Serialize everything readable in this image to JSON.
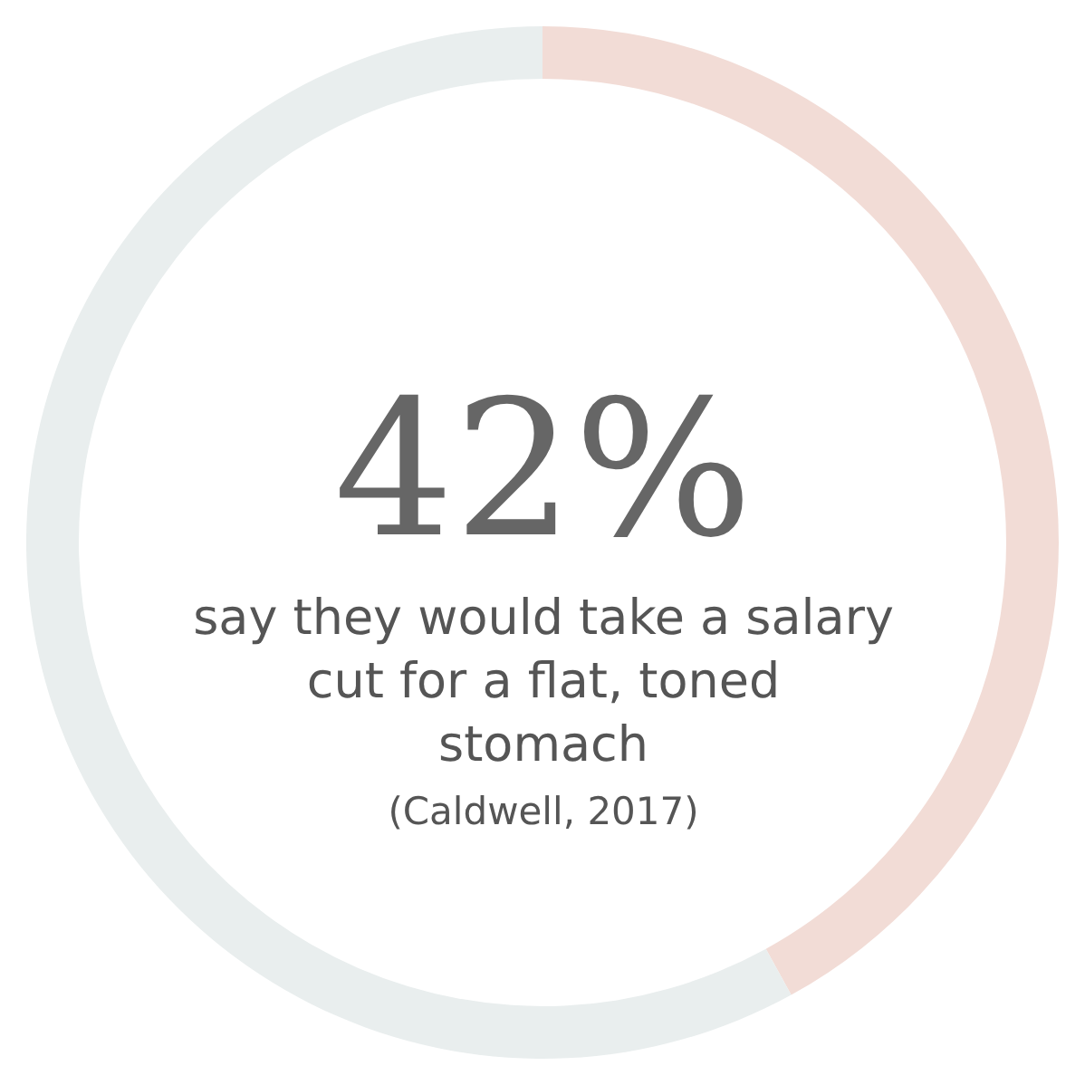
{
  "chart_data": {
    "type": "donut",
    "categories": [
      null,
      null
    ],
    "values": [
      42,
      58
    ],
    "colors": [
      "#f2dcd6",
      "#e9eeee"
    ],
    "value_labels": [
      "42%",
      null
    ],
    "annotations": [
      "say they would take a salary cut for a flat, toned stomach",
      "(Caldwell, 2017)"
    ]
  }
}
